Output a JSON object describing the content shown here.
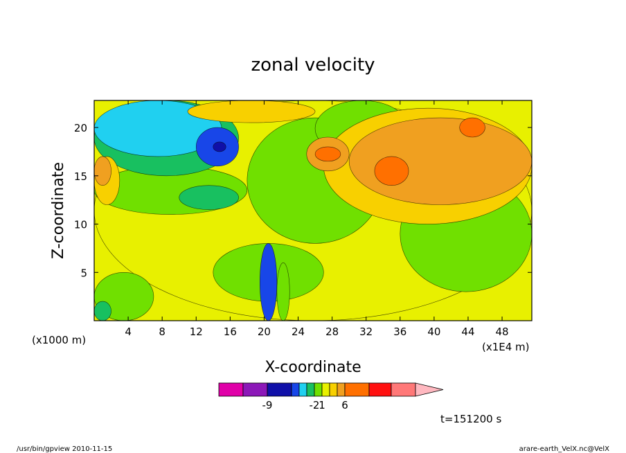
{
  "chart_data": {
    "type": "heatmap",
    "title": "zonal velocity",
    "xlabel": "X-coordinate",
    "ylabel": "Z-coordinate",
    "x_unit_label": "(x1E4 m)",
    "y_unit_label": "(x1000 m)",
    "xlim": [
      0,
      51.5
    ],
    "ylim": [
      0,
      22.8
    ],
    "x_ticks": [
      4,
      8,
      12,
      16,
      20,
      24,
      28,
      32,
      36,
      40,
      44,
      48
    ],
    "y_ticks": [
      5,
      10,
      15,
      20
    ],
    "colorbar": {
      "colors": [
        "#e000a8",
        "#8c18b8",
        "#1010a8",
        "#1846e8",
        "#20d0f0",
        "#18c060",
        "#70e000",
        "#e8f000",
        "#f8d000",
        "#f0a020",
        "#ff7000",
        "#ff1010",
        "#ff7878",
        "#ffb8c0"
      ],
      "labels": [
        {
          "text": "-9",
          "boundary": 2
        },
        {
          "text": "-2",
          "boundary": 6
        },
        {
          "text": "1",
          "boundary": 7
        },
        {
          "text": "6",
          "boundary": 10
        }
      ]
    },
    "zones": [
      {
        "cat": 7,
        "x0": 0,
        "x1": 51.5,
        "y0": 0,
        "y1": 22.8
      },
      {
        "cat": 6,
        "x0": 36,
        "x1": 51.5,
        "y0": 3,
        "y1": 15
      },
      {
        "cat": 6,
        "x0": 0,
        "x1": 18,
        "y0": 11,
        "y1": 16
      },
      {
        "cat": 6,
        "x0": 0,
        "x1": 7,
        "y0": 0,
        "y1": 5
      },
      {
        "cat": 6,
        "x0": 14,
        "x1": 27,
        "y0": 2,
        "y1": 8
      },
      {
        "cat": 6,
        "x0": 18,
        "x1": 34,
        "y0": 8,
        "y1": 21
      },
      {
        "cat": 6,
        "x0": 26,
        "x1": 37,
        "y0": 17,
        "y1": 22.8
      },
      {
        "cat": 5,
        "x0": 0,
        "x1": 17,
        "y0": 15,
        "y1": 22.8
      },
      {
        "cat": 5,
        "x0": 10,
        "x1": 17,
        "y0": 11.5,
        "y1": 14
      },
      {
        "cat": 5,
        "x0": 0,
        "x1": 2,
        "y0": 0,
        "y1": 2
      },
      {
        "cat": 4,
        "x0": 0,
        "x1": 15,
        "y0": 17,
        "y1": 22.8
      },
      {
        "cat": 3,
        "x0": 12,
        "x1": 17,
        "y0": 16,
        "y1": 20
      },
      {
        "cat": 3,
        "x0": 42,
        "x1": 46,
        "y0": 16.5,
        "y1": 18.5
      },
      {
        "cat": 3,
        "x0": 40,
        "x1": 43,
        "y0": 14.5,
        "y1": 16.5
      },
      {
        "cat": 2,
        "x0": 14,
        "x1": 15.5,
        "y0": 17.5,
        "y1": 18.5
      },
      {
        "cat": 8,
        "x0": 27,
        "x1": 51.5,
        "y0": 10,
        "y1": 22
      },
      {
        "cat": 8,
        "x0": 0,
        "x1": 3,
        "y0": 12,
        "y1": 17
      },
      {
        "cat": 8,
        "x0": 11,
        "x1": 26,
        "y0": 20.5,
        "y1": 22.8
      },
      {
        "cat": 9,
        "x0": 30,
        "x1": 51.5,
        "y0": 12,
        "y1": 21
      },
      {
        "cat": 9,
        "x0": 0,
        "x1": 2,
        "y0": 14,
        "y1": 17
      },
      {
        "cat": 9,
        "x0": 25,
        "x1": 30,
        "y0": 15.5,
        "y1": 19
      },
      {
        "cat": 10,
        "x0": 43,
        "x1": 46,
        "y0": 19,
        "y1": 21
      },
      {
        "cat": 10,
        "x0": 26,
        "x1": 29,
        "y0": 16.5,
        "y1": 18
      },
      {
        "cat": 10,
        "x0": 33,
        "x1": 37,
        "y0": 14,
        "y1": 17
      },
      {
        "cat": 3,
        "x0": 19.5,
        "x1": 21.5,
        "y0": 0,
        "y1": 8
      },
      {
        "cat": 6,
        "x0": 21.5,
        "x1": 23,
        "y0": 0,
        "y1": 6
      }
    ]
  },
  "annotations": {
    "time": "t=151200 s",
    "footer_left": "/usr/bin/gpview  2010-11-15",
    "footer_right": "arare-earth_VelX.nc@VelX"
  }
}
